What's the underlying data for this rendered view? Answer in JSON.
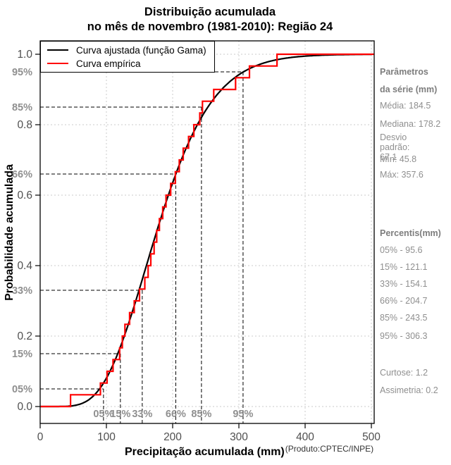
{
  "title": {
    "line1": "Distribuição acumulada",
    "line2": "no mês de novembro (1981-2010): Região 24"
  },
  "chart_data": {
    "type": "line",
    "title": "Distribuição acumulada no mês de novembro (1981-2010): Região 24",
    "xlabel": "Precipitação acumulada (mm)",
    "ylabel": "Probabilidade acumulada",
    "source_note": "(Produto:CPTEC/INPE)",
    "xlim": [
      0,
      500
    ],
    "ylim": [
      0,
      1
    ],
    "x_ticks": [
      0,
      100,
      200,
      300,
      400,
      500
    ],
    "y_ticks": [
      "0.0",
      "0.2",
      "0.4",
      "0.6",
      "0.8",
      "1.0"
    ],
    "grid": true,
    "legend_position": "top-left",
    "series": [
      {
        "name": "Curva ajustada (função Gama)",
        "color": "#000000",
        "curve": "gamma_cdf"
      },
      {
        "name": "Curva empírica",
        "color": "#ff0000",
        "curve": "empirical_step",
        "values": [
          45.8,
          91,
          101,
          110,
          120,
          124,
          128,
          135,
          142,
          150,
          158,
          163,
          167,
          172,
          176,
          180,
          185,
          190,
          197,
          204,
          210,
          216,
          224,
          232,
          241,
          245,
          262,
          295,
          316,
          357.6
        ]
      }
    ],
    "percentile_guides": [
      {
        "label": "05%",
        "p": 0.05,
        "value_mm": 95.6
      },
      {
        "label": "15%",
        "p": 0.15,
        "value_mm": 121.1
      },
      {
        "label": "33%",
        "p": 0.33,
        "value_mm": 154.1
      },
      {
        "label": "66%",
        "p": 0.66,
        "value_mm": 204.7
      },
      {
        "label": "85%",
        "p": 0.85,
        "value_mm": 243.5
      },
      {
        "label": "95%",
        "p": 0.95,
        "value_mm": 306.3
      }
    ],
    "stats": {
      "mean": 184.5,
      "median": 178.2,
      "std_dev": 67.1,
      "min": 45.8,
      "max": 357.6,
      "kurtosis": 1.2,
      "skewness": 0.2
    }
  },
  "sidebar": {
    "params_title": [
      "Parâmetros",
      "da série (mm)"
    ],
    "stats_lines": [
      "Média: 184.5",
      "Mediana: 178.2",
      "Desvio padrão: 67.1",
      "Mín: 45.8",
      "Máx: 357.6"
    ],
    "percentiles_title": "Percentis(mm)",
    "percentile_lines": [
      "05% - 95.6",
      "15% - 121.1",
      "33% - 154.1",
      "66% - 204.7",
      "85% - 243.5",
      "95% - 306.3"
    ],
    "moment_lines": [
      "Curtose: 1.2",
      "Assimetria: 0.2"
    ]
  }
}
